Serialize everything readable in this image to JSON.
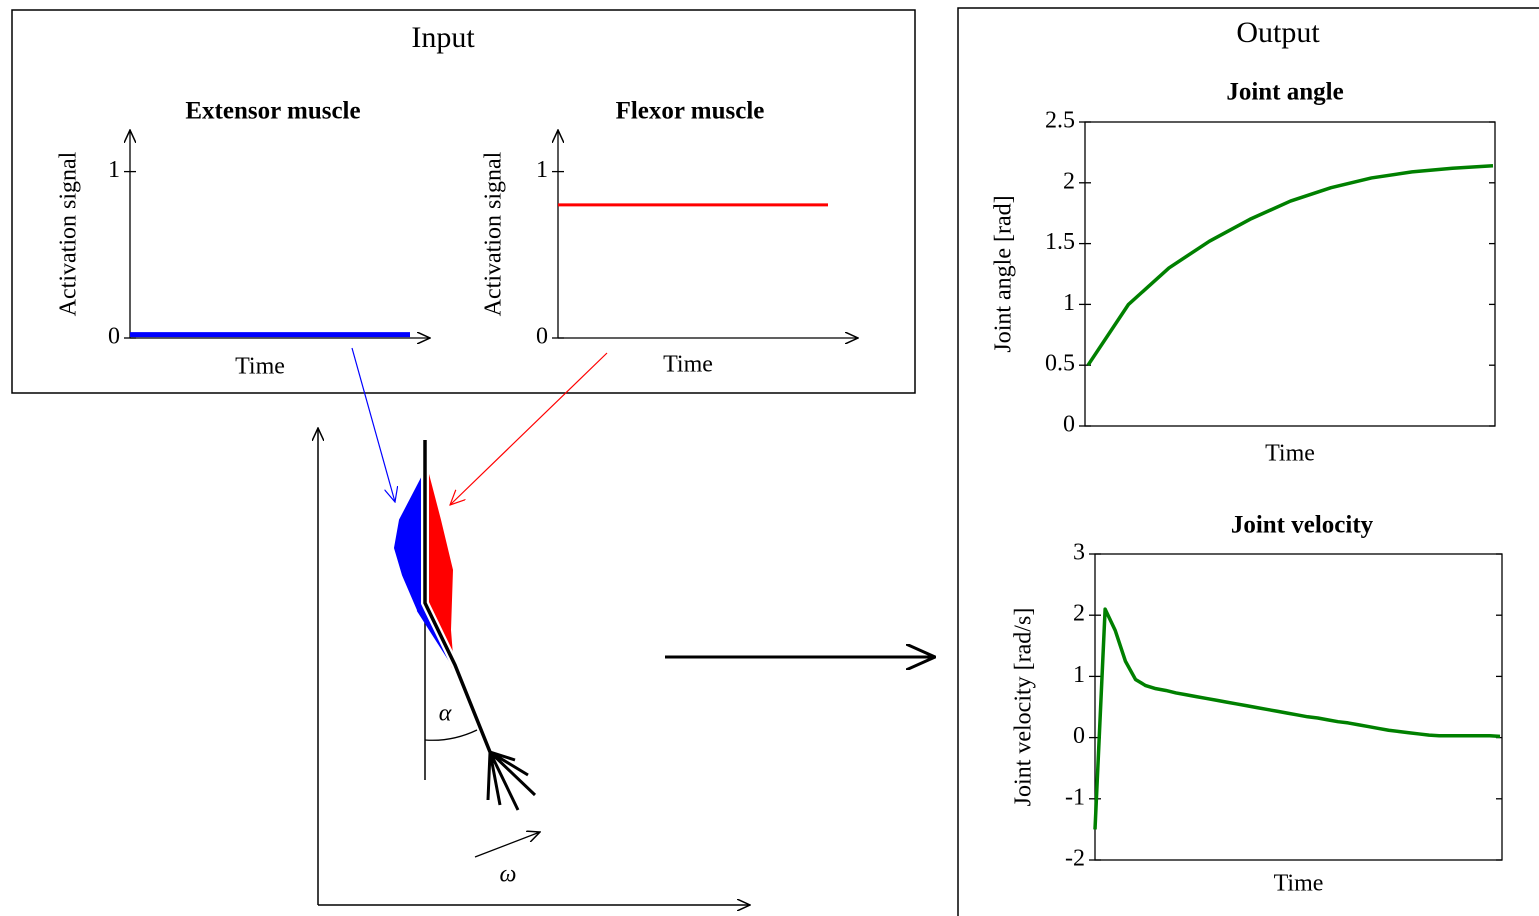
{
  "input": {
    "title": "Input",
    "charts": [
      {
        "type": "line",
        "title": "Extensor muscle",
        "y_label": "Activation signal",
        "x_label": "Time",
        "ylim": [
          0,
          1.25
        ],
        "yticks": [
          0,
          1
        ],
        "color": "#0000ff",
        "values": [
          0.02,
          0.02
        ]
      },
      {
        "type": "line",
        "title": "Flexor muscle",
        "y_label": "Activation signal",
        "x_label": "Time",
        "ylim": [
          0,
          1.25
        ],
        "yticks": [
          0,
          1
        ],
        "color": "#ff0000",
        "values": [
          0.8,
          0.8
        ]
      }
    ]
  },
  "output": {
    "title": "Output",
    "charts": [
      {
        "type": "line",
        "title": "Joint angle",
        "y_label": "Joint angle [rad]",
        "x_label": "Time",
        "ylim": [
          0,
          2.5
        ],
        "yticks": [
          0,
          0.5,
          1,
          1.5,
          2,
          2.5
        ],
        "color": "#008000",
        "values": [
          0.5,
          1.0,
          1.3,
          1.52,
          1.7,
          1.85,
          1.96,
          2.04,
          2.09,
          2.12,
          2.14
        ]
      },
      {
        "type": "line",
        "title": "Joint velocity",
        "y_label": "Joint velocity [rad/s]",
        "x_label": "Time",
        "ylim": [
          -2,
          3
        ],
        "yticks": [
          -2,
          -1,
          0,
          1,
          2,
          3
        ],
        "color": "#008000",
        "values": [
          -1.5,
          2.1,
          1.75,
          1.25,
          0.95,
          0.85,
          0.8,
          0.77,
          0.73,
          0.7,
          0.67,
          0.64,
          0.61,
          0.58,
          0.55,
          0.52,
          0.49,
          0.46,
          0.43,
          0.4,
          0.37,
          0.34,
          0.32,
          0.29,
          0.26,
          0.24,
          0.21,
          0.18,
          0.15,
          0.12,
          0.1,
          0.08,
          0.06,
          0.04,
          0.03,
          0.03,
          0.03,
          0.03,
          0.03,
          0.03,
          0.02
        ]
      }
    ]
  },
  "arm": {
    "angle_label": "α",
    "velocity_label": "ω"
  }
}
